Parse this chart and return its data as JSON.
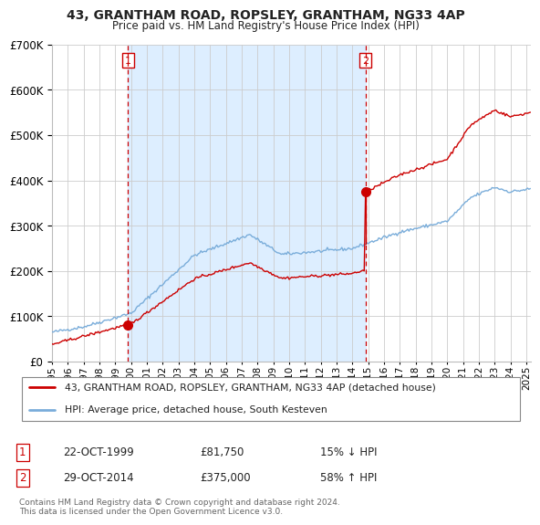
{
  "title": "43, GRANTHAM ROAD, ROPSLEY, GRANTHAM, NG33 4AP",
  "subtitle": "Price paid vs. HM Land Registry's House Price Index (HPI)",
  "legend_line1": "43, GRANTHAM ROAD, ROPSLEY, GRANTHAM, NG33 4AP (detached house)",
  "legend_line2": "HPI: Average price, detached house, South Kesteven",
  "transaction1_date": "22-OCT-1999",
  "transaction1_price": "£81,750",
  "transaction1_hpi": "15% ↓ HPI",
  "transaction2_date": "29-OCT-2014",
  "transaction2_price": "£375,000",
  "transaction2_hpi": "58% ↑ HPI",
  "footer": "Contains HM Land Registry data © Crown copyright and database right 2024.\nThis data is licensed under the Open Government Licence v3.0.",
  "line_color_red": "#cc0000",
  "line_color_blue": "#7aadda",
  "band_color": "#ddeeff",
  "background_color": "#ffffff",
  "grid_color": "#cccccc",
  "ylim": [
    0,
    700000
  ],
  "xlim_start": 1995.0,
  "xlim_end": 2025.3,
  "vline1_x": 1999.8,
  "vline2_x": 2014.83,
  "t1_price": 81750,
  "t2_price": 375000,
  "t2_hpi_val": 237000
}
